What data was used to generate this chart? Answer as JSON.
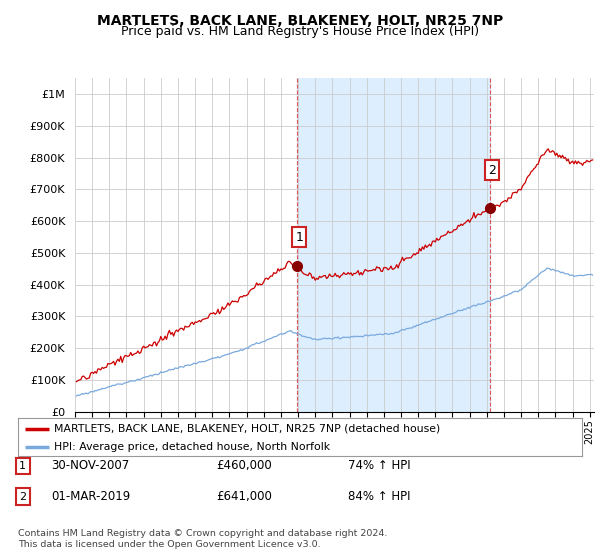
{
  "title": "MARTLETS, BACK LANE, BLAKENEY, HOLT, NR25 7NP",
  "subtitle": "Price paid vs. HM Land Registry's House Price Index (HPI)",
  "title_fontsize": 10,
  "subtitle_fontsize": 9,
  "background_color": "#ffffff",
  "plot_bg_color": "#ffffff",
  "grid_color": "#cccccc",
  "ylim": [
    0,
    1050000
  ],
  "yticks": [
    0,
    100000,
    200000,
    300000,
    400000,
    500000,
    600000,
    700000,
    800000,
    900000,
    1000000
  ],
  "ytick_labels": [
    "£0",
    "£100K",
    "£200K",
    "£300K",
    "£400K",
    "£500K",
    "£600K",
    "£700K",
    "£800K",
    "£900K",
    "£1M"
  ],
  "legend_line1": "MARTLETS, BACK LANE, BLAKENEY, HOLT, NR25 7NP (detached house)",
  "legend_line2": "HPI: Average price, detached house, North Norfolk",
  "line1_color": "#cc0000",
  "line2_color": "#7aaadd",
  "vline_color": "#dd4444",
  "shade_color": "#ddeeff",
  "sale1_t": 2007.917,
  "sale1_y": 460000,
  "sale2_t": 2019.167,
  "sale2_y": 641000,
  "table_rows": [
    {
      "num": "1",
      "date": "30-NOV-2007",
      "price": "£460,000",
      "hpi": "74% ↑ HPI"
    },
    {
      "num": "2",
      "date": "01-MAR-2019",
      "price": "£641,000",
      "hpi": "84% ↑ HPI"
    }
  ],
  "footer": "Contains HM Land Registry data © Crown copyright and database right 2024.\nThis data is licensed under the Open Government Licence v3.0.",
  "xlim_start": 1995.25,
  "xlim_end": 2025.25
}
